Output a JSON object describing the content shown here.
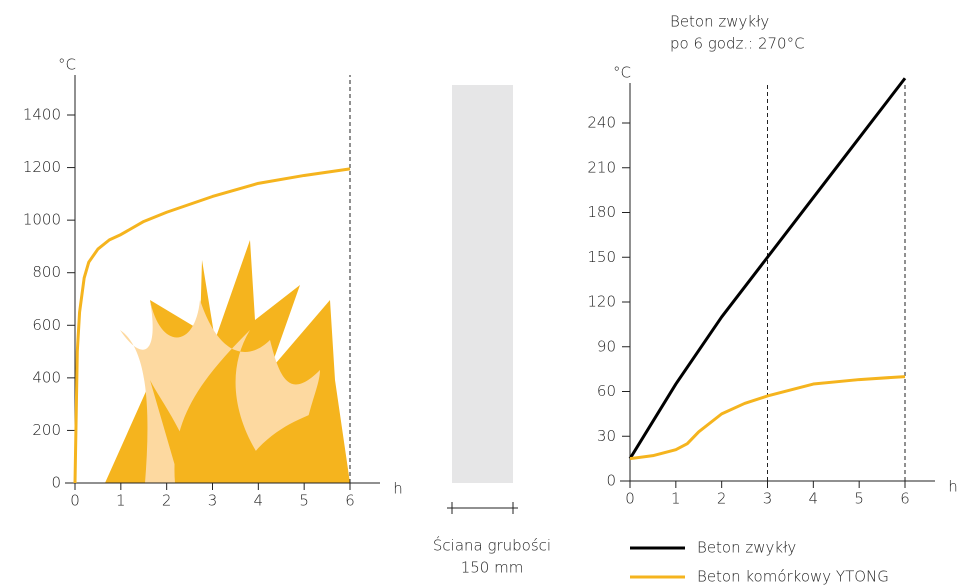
{
  "chart_data": [
    {
      "type": "line",
      "ylabel": "°C",
      "xlabel": "h",
      "xlim": [
        0,
        6
      ],
      "ylim": [
        0,
        1400
      ],
      "xticks": [
        0,
        1,
        2,
        3,
        4,
        5,
        6
      ],
      "yticks": [
        0,
        200,
        400,
        600,
        800,
        1000,
        1200,
        1400
      ],
      "reference_lines": [
        6
      ],
      "series": [
        {
          "color": "#f5b41e",
          "x": [
            0,
            0.05,
            0.1,
            0.2,
            0.3,
            0.5,
            0.75,
            1,
            1.5,
            2,
            3,
            4,
            5,
            6
          ],
          "values": [
            0,
            500,
            650,
            780,
            840,
            890,
            925,
            945,
            995,
            1030,
            1090,
            1140,
            1170,
            1195
          ]
        }
      ]
    },
    {
      "type": "line",
      "ylabel": "°C",
      "xlabel": "h",
      "annotation": [
        "Beton zwykły",
        "po 6 godz.: 270°C"
      ],
      "xlim": [
        0,
        6
      ],
      "ylim": [
        0,
        240
      ],
      "xticks": [
        0,
        1,
        2,
        3,
        4,
        5,
        6
      ],
      "yticks": [
        0,
        30,
        60,
        90,
        120,
        150,
        180,
        210,
        240
      ],
      "reference_lines": [
        3,
        6
      ],
      "series": [
        {
          "name": "Beton zwykły",
          "color": "#000000",
          "x": [
            0,
            1,
            2,
            3,
            4,
            5,
            6
          ],
          "values": [
            15,
            65,
            110,
            150,
            190,
            230,
            270
          ]
        },
        {
          "name": "Beton komórkowy YTONG",
          "color": "#f5b41e",
          "x": [
            0,
            0.5,
            1,
            1.25,
            1.5,
            2,
            2.5,
            3,
            4,
            5,
            6
          ],
          "values": [
            15,
            17,
            21,
            25,
            33,
            45,
            52,
            57,
            65,
            68,
            70
          ]
        }
      ]
    }
  ],
  "wall": {
    "label": [
      "Ściana grubości",
      "150 mm"
    ]
  }
}
